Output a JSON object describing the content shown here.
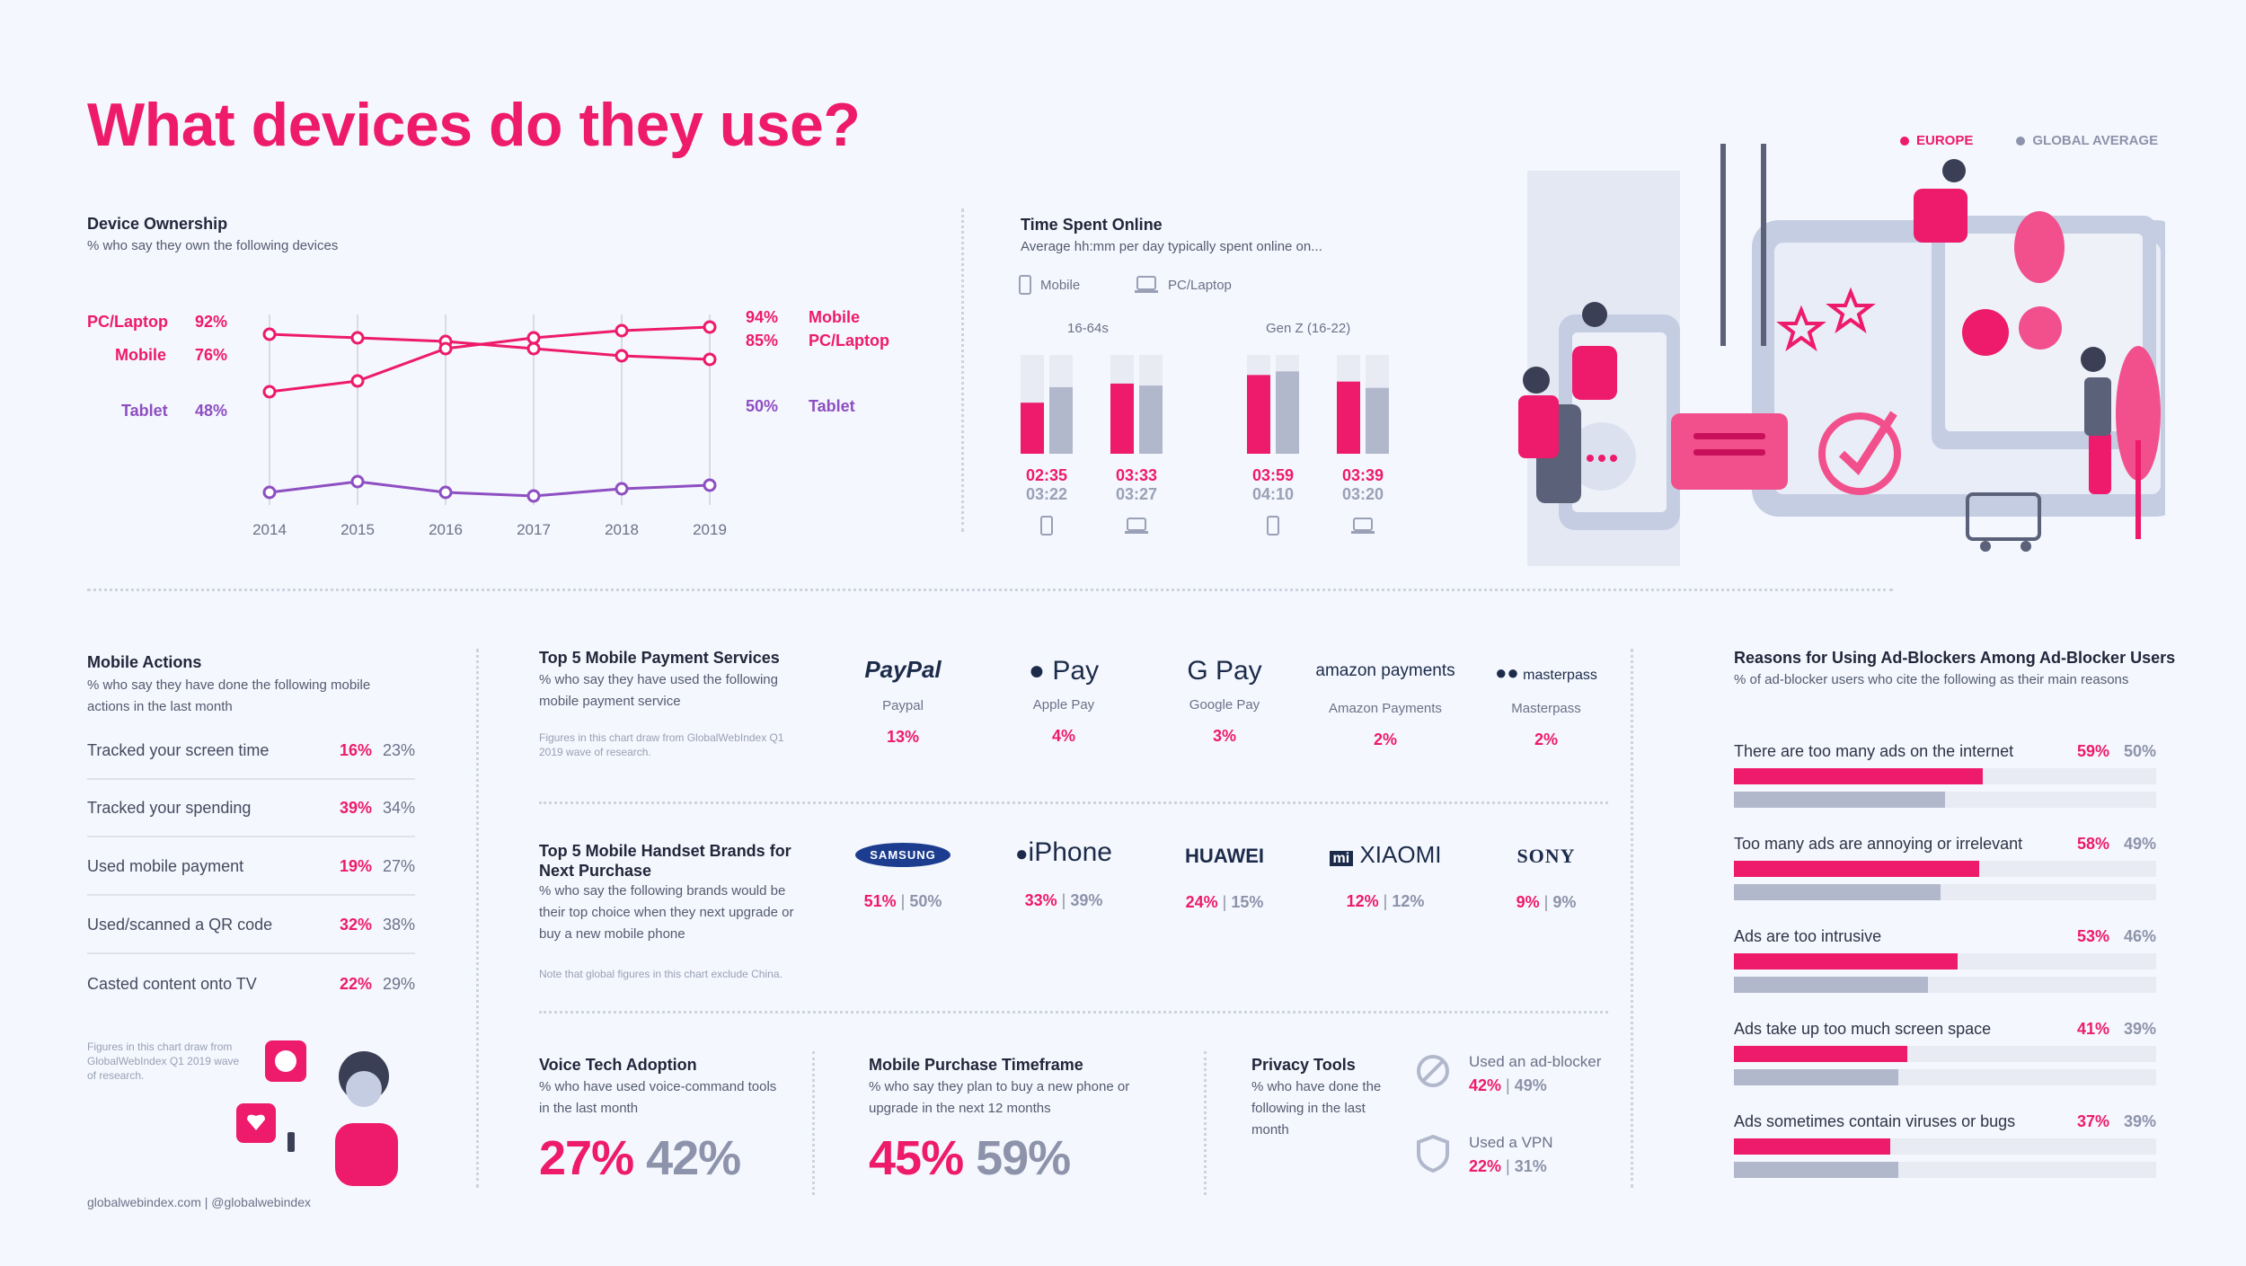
{
  "title": "What devices do they use?",
  "legend": {
    "europe": "EUROPE",
    "global": "GLOBAL AVERAGE",
    "europe_color": "#ee1a6b",
    "global_color": "#8d93aa"
  },
  "device_ownership": {
    "title": "Device Ownership",
    "subtitle": "% who say they own the following devices",
    "left_labels": [
      {
        "name": "PC/Laptop",
        "value": "92%"
      },
      {
        "name": "Mobile",
        "value": "76%"
      },
      {
        "name": "Tablet",
        "value": "48%"
      }
    ],
    "right_labels": [
      {
        "name": "Mobile",
        "value": "94%"
      },
      {
        "name": "PC/Laptop",
        "value": "85%"
      },
      {
        "name": "Tablet",
        "value": "50%"
      }
    ]
  },
  "time_online": {
    "title": "Time Spent Online",
    "subtitle": "Average hh:mm per day typically spent online on...",
    "legend_mobile": "Mobile",
    "legend_pc": "PC/Laptop",
    "group1": "16-64s",
    "group2": "Gen Z (16-22)"
  },
  "mobile_actions": {
    "title": "Mobile Actions",
    "subtitle": "% who say they have done the following mobile actions in the last month",
    "rows": [
      {
        "label": "Tracked your screen time",
        "eu": "16%",
        "gl": "23%"
      },
      {
        "label": "Tracked your spending",
        "eu": "39%",
        "gl": "34%"
      },
      {
        "label": "Used mobile payment",
        "eu": "19%",
        "gl": "27%"
      },
      {
        "label": "Used/scanned a QR code",
        "eu": "32%",
        "gl": "38%"
      },
      {
        "label": "Casted content onto TV",
        "eu": "22%",
        "gl": "29%"
      }
    ],
    "note": "Figures in this chart draw from GlobalWebIndex Q1 2019 wave of research."
  },
  "payments": {
    "title": "Top 5 Mobile Payment Services",
    "subtitle": "% who say they have used the following mobile payment service",
    "note": "Figures in this chart draw from GlobalWebIndex Q1 2019 wave of research.",
    "items": [
      {
        "logo": "PayPal",
        "name": "Paypal",
        "value": "13%"
      },
      {
        "logo": "Pay",
        "name": "Apple Pay",
        "value": "4%"
      },
      {
        "logo": "G Pay",
        "name": "Google Pay",
        "value": "3%"
      },
      {
        "logo": "amazon payments",
        "name": "Amazon Payments",
        "value": "2%"
      },
      {
        "logo": "masterpass",
        "name": "Masterpass",
        "value": "2%"
      }
    ]
  },
  "handsets": {
    "title": "Top 5 Mobile Handset Brands for Next Purchase",
    "subtitle": "% who say the following brands would be their top choice when they next upgrade or buy a new mobile phone",
    "note": "Note that global figures in this chart exclude China.",
    "items": [
      {
        "logo": "SAMSUNG",
        "eu": "51%",
        "gl": "50%"
      },
      {
        "logo": "iPhone",
        "eu": "33%",
        "gl": "39%"
      },
      {
        "logo": "HUAWEI",
        "eu": "24%",
        "gl": "15%"
      },
      {
        "logo": "XIAOMI",
        "eu": "12%",
        "gl": "12%"
      },
      {
        "logo": "SONY",
        "eu": "9%",
        "gl": "9%"
      }
    ]
  },
  "voice": {
    "title": "Voice Tech Adoption",
    "subtitle": "% who have used voice-command tools in the last month",
    "eu": "27%",
    "gl": "42%"
  },
  "purchase": {
    "title": "Mobile Purchase Timeframe",
    "subtitle": "% who say they plan to buy a new phone or upgrade in the next 12 months",
    "eu": "45%",
    "gl": "59%"
  },
  "privacy": {
    "title": "Privacy Tools",
    "subtitle": "% who have done the following in the last month",
    "items": [
      {
        "label": "Used an ad-blocker",
        "eu": "42%",
        "gl": "49%"
      },
      {
        "label": "Used a VPN",
        "eu": "22%",
        "gl": "31%"
      }
    ]
  },
  "adblock": {
    "title": "Reasons for Using Ad-Blockers Among Ad-Blocker Users",
    "subtitle": "% of ad-blocker users who cite the following as their main reasons"
  },
  "footer": "globalwebindex.com  |  @globalwebindex",
  "chart_data": [
    {
      "id": "device_ownership",
      "type": "line",
      "title": "Device Ownership",
      "x": [
        "2014",
        "2015",
        "2016",
        "2017",
        "2018",
        "2019"
      ],
      "ylim": [
        40,
        100
      ],
      "series": [
        {
          "name": "PC/Laptop",
          "color": "#ee1a6b",
          "values": [
            92,
            91,
            90,
            88,
            86,
            85
          ]
        },
        {
          "name": "Mobile",
          "color": "#ee1a6b",
          "values": [
            76,
            79,
            88,
            91,
            93,
            94
          ]
        },
        {
          "name": "Tablet",
          "color": "#8e4fc2",
          "values": [
            48,
            51,
            48,
            47,
            49,
            50
          ]
        }
      ]
    },
    {
      "id": "time_online",
      "type": "bar",
      "title": "Time Spent Online",
      "ymax_minutes": 300,
      "groups": [
        {
          "group": "16-64s",
          "device": "Mobile",
          "eu": "02:35",
          "gl": "03:22"
        },
        {
          "group": "16-64s",
          "device": "PC/Laptop",
          "eu": "03:33",
          "gl": "03:27"
        },
        {
          "group": "Gen Z (16-22)",
          "device": "Mobile",
          "eu": "03:59",
          "gl": "04:10"
        },
        {
          "group": "Gen Z (16-22)",
          "device": "PC/Laptop",
          "eu": "03:39",
          "gl": "03:20"
        }
      ]
    },
    {
      "id": "adblock",
      "type": "bar",
      "title": "Reasons for Using Ad-Blockers Among Ad-Blocker Users",
      "xlim": [
        0,
        100
      ],
      "categories": [
        "There are too many ads on the internet",
        "Too many ads are annoying or irrelevant",
        "Ads are too intrusive",
        "Ads take up too much screen space",
        "Ads sometimes contain viruses or bugs"
      ],
      "series": [
        {
          "name": "EUROPE",
          "values": [
            59,
            58,
            53,
            41,
            37
          ]
        },
        {
          "name": "GLOBAL AVERAGE",
          "values": [
            50,
            49,
            46,
            39,
            39
          ]
        }
      ]
    }
  ]
}
